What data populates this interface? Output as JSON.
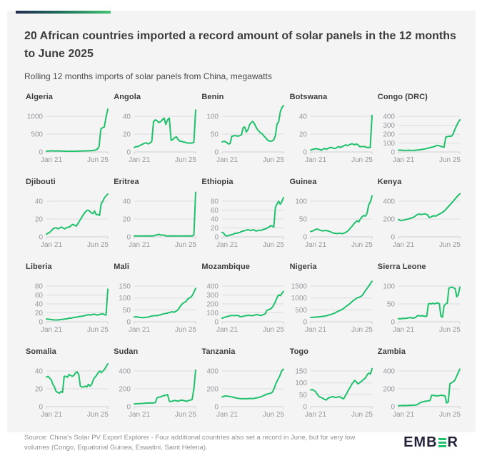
{
  "header": {
    "title": "20 African countries imported a record amount of solar panels in the 12 months to June 2025",
    "subtitle": "Rolling 12 months imports of solar panels from China, megawatts"
  },
  "footer": {
    "source": "Source: China's Solar PV Export Explorer - Four additional countries also set a record in June, but for very low volumes (Congo, Equatorial Guinea, Eswatini, Saint Helena).",
    "logo_prefix": "EMB",
    "logo_suffix": "R"
  },
  "colors": {
    "line_green": "#1fc16b",
    "card_background": "#f4f4f5",
    "gridline": "#dcdcde",
    "baseline": "#cfcfd2",
    "axis_label": "#98989e",
    "accent_gradient_start": "#232c4e",
    "accent_gradient_end": "#41c36f",
    "logo_dark": "#23233a"
  },
  "chart_data": {
    "type": "line",
    "title": "20 African countries imported a record amount of solar panels in the 12 months to June 2025",
    "subtitle": "Rolling 12 months imports of solar panels from China, megawatts",
    "unit": "megawatts",
    "x_range": [
      "Jan 21",
      "Jun 25"
    ],
    "grid": true,
    "legend": false,
    "charts": [
      {
        "name": "Algeria",
        "yticks": [
          0,
          500,
          1000
        ],
        "values": [
          22,
          26,
          30,
          34,
          30,
          28,
          30,
          32,
          28,
          24,
          22,
          20,
          18,
          20,
          22,
          20,
          18,
          20,
          24,
          26,
          28,
          30,
          30,
          32,
          34,
          36,
          40,
          45,
          55,
          80,
          150,
          640,
          680,
          700,
          980,
          1200
        ]
      },
      {
        "name": "Angola",
        "yticks": [
          0,
          20,
          40
        ],
        "values": [
          5,
          6,
          6,
          7,
          8,
          9,
          10,
          10,
          9,
          10,
          12,
          34,
          36,
          35,
          33,
          34,
          36,
          38,
          31,
          36,
          38,
          13,
          14,
          16,
          17,
          14,
          12,
          12,
          11,
          11,
          10,
          10,
          10,
          10,
          11,
          47
        ]
      },
      {
        "name": "Benin",
        "yticks": [
          0,
          50,
          100
        ],
        "values": [
          28,
          30,
          29,
          26,
          22,
          24,
          44,
          45,
          46,
          45,
          44,
          46,
          48,
          68,
          70,
          56,
          62,
          76,
          82,
          86,
          79,
          70,
          62,
          57,
          53,
          50,
          44,
          40,
          34,
          31,
          30,
          31,
          34,
          46,
          78,
          84,
          112,
          124,
          130
        ]
      },
      {
        "name": "Botswana",
        "yticks": [
          0,
          20,
          40
        ],
        "values": [
          2,
          3,
          3,
          4,
          3,
          3,
          2,
          3,
          4,
          3,
          4,
          5,
          5,
          4,
          4,
          5,
          6,
          5,
          6,
          7,
          8,
          7,
          8,
          9,
          9,
          8,
          9,
          8,
          6,
          6,
          6,
          6,
          5,
          5,
          5,
          41
        ]
      },
      {
        "name": "Congo (DRC)",
        "yticks": [
          0,
          100,
          200,
          300,
          400
        ],
        "values": [
          20,
          20,
          19,
          18,
          17,
          18,
          19,
          18,
          17,
          18,
          20,
          22,
          24,
          27,
          30,
          34,
          38,
          43,
          48,
          53,
          58,
          66,
          73,
          71,
          64,
          58,
          54,
          168,
          172,
          178,
          174,
          195,
          245,
          290,
          330,
          360
        ]
      },
      {
        "name": "Djibouti",
        "yticks": [
          0,
          20,
          40
        ],
        "values": [
          3,
          4,
          5,
          7,
          9,
          10,
          10,
          9,
          10,
          11,
          10,
          9,
          10,
          11,
          11,
          13,
          14,
          13,
          12,
          15,
          18,
          21,
          24,
          27,
          29,
          30,
          29,
          27,
          26,
          29,
          25,
          25,
          24,
          37,
          40,
          44,
          46,
          48
        ]
      },
      {
        "name": "Eritrea",
        "yticks": [
          0,
          20,
          40
        ],
        "values": [
          1,
          1,
          1,
          1,
          1,
          1,
          1,
          1,
          1,
          1,
          1,
          1,
          2,
          2,
          3,
          2,
          2,
          2,
          1,
          1,
          1,
          1,
          1,
          1,
          1,
          1,
          1,
          1,
          1,
          1,
          1,
          1,
          1,
          1,
          2,
          50
        ]
      },
      {
        "name": "Ethiopia",
        "yticks": [
          0,
          20,
          40,
          60,
          80
        ],
        "values": [
          10,
          8,
          3,
          2,
          3,
          4,
          5,
          6,
          8,
          8,
          9,
          10,
          12,
          13,
          14,
          15,
          16,
          15,
          14,
          16,
          15,
          13,
          14,
          15,
          14,
          16,
          17,
          18,
          20,
          22,
          25,
          24,
          22,
          66,
          74,
          80,
          73,
          79,
          88
        ]
      },
      {
        "name": "Guinea",
        "yticks": [
          0,
          50,
          100
        ],
        "values": [
          15,
          16,
          18,
          21,
          22,
          20,
          18,
          17,
          17,
          18,
          17,
          16,
          14,
          12,
          10,
          10,
          9,
          10,
          10,
          9,
          10,
          12,
          15,
          19,
          25,
          30,
          36,
          41,
          45,
          42,
          50,
          56,
          60,
          58,
          66,
          90,
          98,
          115
        ]
      },
      {
        "name": "Kenya",
        "yticks": [
          0,
          200,
          400
        ],
        "values": [
          195,
          185,
          182,
          186,
          192,
          196,
          200,
          206,
          212,
          218,
          228,
          242,
          252,
          256,
          250,
          254,
          258,
          254,
          248,
          216,
          222,
          232,
          236,
          232,
          242,
          252,
          262,
          272,
          284,
          302,
          322,
          342,
          362,
          382,
          402,
          424,
          446,
          465,
          483
        ]
      },
      {
        "name": "Liberia",
        "yticks": [
          0,
          20,
          40,
          60,
          80
        ],
        "values": [
          6,
          6,
          5,
          5,
          4,
          4,
          4,
          4,
          5,
          5,
          6,
          6,
          7,
          8,
          8,
          9,
          10,
          10,
          11,
          12,
          12,
          13,
          14,
          15,
          16,
          15,
          16,
          17,
          16,
          15,
          16,
          17,
          18,
          16,
          15,
          73
        ]
      },
      {
        "name": "Mali",
        "yticks": [
          0,
          50,
          100,
          150
        ],
        "values": [
          20,
          21,
          20,
          19,
          18,
          17,
          17,
          18,
          19,
          20,
          22,
          24,
          25,
          26,
          25,
          27,
          28,
          30,
          32,
          34,
          35,
          36,
          38,
          40,
          42,
          40,
          42,
          46,
          52,
          62,
          72,
          78,
          82,
          86,
          96,
          100,
          104,
          112,
          126,
          140
        ]
      },
      {
        "name": "Mozambique",
        "yticks": [
          0,
          100,
          200,
          300,
          400
        ],
        "values": [
          40,
          46,
          52,
          56,
          62,
          66,
          70,
          70,
          68,
          70,
          72,
          68,
          56,
          58,
          60,
          65,
          70,
          70,
          72,
          70,
          68,
          70,
          76,
          80,
          78,
          72,
          70,
          76,
          82,
          92,
          130,
          136,
          140,
          152,
          172,
          205,
          242,
          282,
          302,
          292,
          322,
          340
        ]
      },
      {
        "name": "Nigeria",
        "yticks": [
          0,
          500,
          1000,
          1500
        ],
        "values": [
          180,
          184,
          188,
          194,
          200,
          206,
          212,
          222,
          232,
          244,
          262,
          282,
          302,
          322,
          352,
          382,
          422,
          452,
          482,
          522,
          562,
          622,
          682,
          722,
          782,
          852,
          902,
          952,
          1002,
          1022,
          1052,
          1102,
          1202,
          1302,
          1402,
          1502,
          1602,
          1700
        ]
      },
      {
        "name": "Sierra Leone",
        "yticks": [
          0,
          50,
          100
        ],
        "values": [
          8,
          9,
          8,
          10,
          9,
          10,
          10,
          12,
          11,
          10,
          11,
          12,
          17,
          17,
          16,
          17,
          16,
          15,
          16,
          50,
          51,
          50,
          52,
          50,
          52,
          53,
          50,
          15,
          13,
          45,
          50,
          52,
          94,
          96,
          97,
          95,
          93,
          70,
          76,
          97
        ]
      },
      {
        "name": "Somalia",
        "yticks": [
          0,
          20,
          40
        ],
        "values": [
          33,
          34,
          32,
          30,
          25,
          22,
          17,
          16,
          15,
          17,
          16,
          34,
          34,
          33,
          36,
          35,
          34,
          35,
          38,
          39,
          36,
          23,
          22,
          22,
          23,
          22,
          25,
          23,
          25,
          30,
          33,
          35,
          38,
          40,
          38,
          40,
          42,
          45,
          48
        ]
      },
      {
        "name": "Sudan",
        "yticks": [
          0,
          200,
          400
        ],
        "values": [
          30,
          32,
          33,
          34,
          35,
          36,
          38,
          40,
          40,
          42,
          40,
          42,
          45,
          100,
          105,
          110,
          118,
          124,
          130,
          135,
          62,
          56,
          64,
          70,
          66,
          60,
          70,
          72,
          70,
          64,
          60,
          70,
          74,
          80,
          200,
          410
        ]
      },
      {
        "name": "Tanzania",
        "yticks": [
          0,
          200,
          400
        ],
        "values": [
          110,
          116,
          120,
          118,
          114,
          110,
          105,
          100,
          96,
          92,
          90,
          88,
          90,
          88,
          90,
          92,
          90,
          92,
          96,
          100,
          106,
          112,
          120,
          130,
          140,
          146,
          150,
          162,
          205,
          262,
          305,
          345,
          400,
          420
        ]
      },
      {
        "name": "Togo",
        "yticks": [
          0,
          50,
          100,
          150
        ],
        "values": [
          70,
          72,
          68,
          64,
          55,
          45,
          40,
          38,
          34,
          30,
          28,
          35,
          38,
          40,
          42,
          40,
          38,
          40,
          42,
          40,
          35,
          33,
          45,
          56,
          70,
          80,
          92,
          102,
          110,
          105,
          96,
          100,
          106,
          110,
          116,
          122,
          135,
          141,
          137,
          160
        ]
      },
      {
        "name": "Zambia",
        "yticks": [
          0,
          200,
          400
        ],
        "values": [
          10,
          12,
          12,
          13,
          12,
          13,
          14,
          15,
          15,
          16,
          18,
          20,
          30,
          44,
          50,
          55,
          60,
          62,
          66,
          70,
          128,
          126,
          124,
          120,
          122,
          126,
          128,
          124,
          122,
          42,
          52,
          258,
          268,
          278,
          298,
          340,
          382,
          420
        ]
      }
    ]
  }
}
